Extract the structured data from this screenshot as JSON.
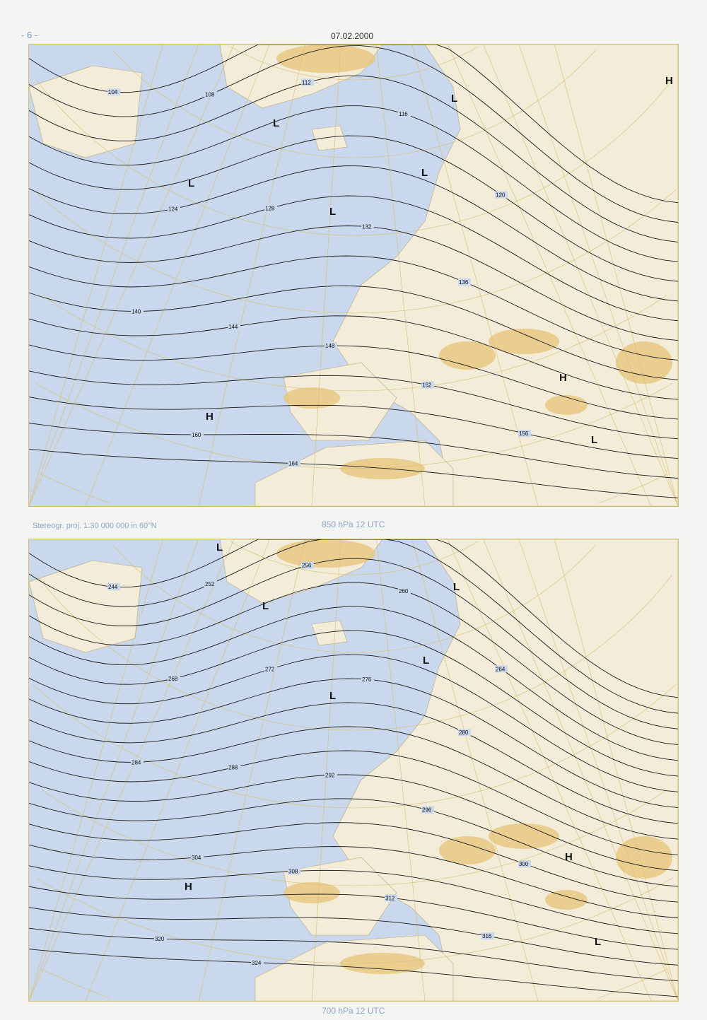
{
  "header": {
    "page_number": "- 6 -",
    "date": "07.02.2000"
  },
  "projection_note": "Stereogr. proj. 1:30 000 000 in 60°N",
  "maps": [
    {
      "title": "850 hPa 12 UTC",
      "contours": [
        "104",
        "108",
        "112",
        "116",
        "120",
        "124",
        "128",
        "132",
        "136",
        "140",
        "144",
        "148",
        "152",
        "156",
        "160",
        "164"
      ],
      "centers": [
        "L",
        "L",
        "L",
        "L",
        "L",
        "H",
        "H",
        "H",
        "L"
      ]
    },
    {
      "title": "700 hPa 12 UTC",
      "contours": [
        "244",
        "252",
        "256",
        "260",
        "264",
        "268",
        "272",
        "276",
        "280",
        "284",
        "288",
        "292",
        "296",
        "300",
        "304",
        "308",
        "312",
        "316",
        "320",
        "324"
      ],
      "centers": [
        "L",
        "L",
        "L",
        "L",
        "L",
        "L",
        "H",
        "H"
      ]
    }
  ],
  "colors": {
    "sea": "#c9d8ec",
    "land": "#f2ecd8",
    "high_terrain": "#e6c77e",
    "contour": "#1a1a1a",
    "graticule": "#d8c070"
  }
}
